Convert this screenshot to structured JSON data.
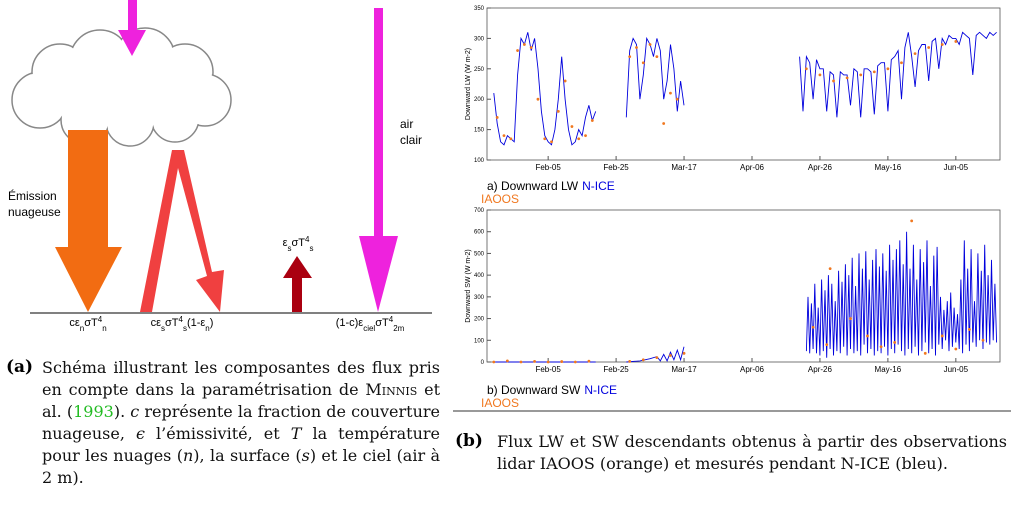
{
  "diagram": {
    "emission": [
      "Émission",
      "nuageuse"
    ],
    "clear_air": [
      "air",
      "clair"
    ],
    "formulas": [
      [
        {
          "t": "cε",
          "pos": "base"
        },
        {
          "t": "n",
          "pos": "sub"
        },
        {
          "t": "σT",
          "pos": "base"
        },
        {
          "t": "4",
          "pos": "super"
        },
        {
          "t": "n",
          "pos": "sub"
        }
      ],
      [
        {
          "t": "cε",
          "pos": "base"
        },
        {
          "t": "s",
          "pos": "sub"
        },
        {
          "t": "σT",
          "pos": "base"
        },
        {
          "t": "4",
          "pos": "super"
        },
        {
          "t": "s",
          "pos": "sub"
        },
        {
          "t": "(1-ε",
          "pos": "base"
        },
        {
          "t": "n",
          "pos": "sub"
        },
        {
          "t": ")",
          "pos": "base"
        }
      ],
      [
        {
          "t": "ε",
          "pos": "base"
        },
        {
          "t": "s",
          "pos": "sub"
        },
        {
          "t": "σT",
          "pos": "base"
        },
        {
          "t": "4",
          "pos": "super"
        },
        {
          "t": "s",
          "pos": "sub"
        }
      ],
      [
        {
          "t": "(1-c)ε",
          "pos": "base"
        },
        {
          "t": "ciel",
          "pos": "sub"
        },
        {
          "t": "σT",
          "pos": "base"
        },
        {
          "t": "4",
          "pos": "super"
        },
        {
          "t": "2m",
          "pos": "sub"
        }
      ]
    ]
  },
  "chart_data": [
    {
      "type": "line",
      "title": "a) Downward LW",
      "ylabel": "Downward LW (W m-2)",
      "xlim": [
        18,
        169
      ],
      "ylim": [
        100,
        350
      ],
      "xticks": [
        {
          "value": 36,
          "label": "Feb-05"
        },
        {
          "value": 56,
          "label": "Feb-25"
        },
        {
          "value": 76,
          "label": "Mar-17"
        },
        {
          "value": 96,
          "label": "Apr-06"
        },
        {
          "value": 116,
          "label": "Apr-26"
        },
        {
          "value": 136,
          "label": "May-16"
        },
        {
          "value": 156,
          "label": "Jun-05"
        }
      ],
      "yticks": [
        100,
        150,
        200,
        250,
        300,
        350
      ],
      "series": [
        {
          "name": "N-ICE",
          "color": "#0000dd",
          "kind": "line",
          "x": [
            20,
            21,
            22,
            23,
            24,
            25,
            26,
            27,
            28,
            29,
            30,
            31,
            32,
            33,
            34,
            35,
            36,
            37,
            38,
            39,
            40,
            41,
            42,
            43,
            44,
            45,
            46,
            47,
            48,
            49,
            50,
            55,
            59,
            60,
            61,
            62,
            63,
            64,
            65,
            66,
            67,
            68,
            69,
            70,
            71,
            72,
            73,
            74,
            75,
            76,
            93,
            110,
            111,
            112,
            113,
            114,
            115,
            116,
            117,
            118,
            119,
            120,
            121,
            122,
            123,
            124,
            125,
            126,
            127,
            128,
            129,
            130,
            131,
            132,
            133,
            134,
            135,
            136,
            137,
            138,
            139,
            140,
            141,
            142,
            143,
            144,
            145,
            146,
            147,
            148,
            149,
            150,
            151,
            152,
            153,
            154,
            155,
            156,
            157,
            158,
            159,
            160,
            161,
            162,
            163,
            164,
            165,
            166,
            167,
            168
          ],
          "values": [
            210,
            160,
            130,
            125,
            140,
            135,
            130,
            240,
            300,
            290,
            310,
            280,
            300,
            250,
            180,
            140,
            130,
            125,
            150,
            200,
            270,
            200,
            150,
            125,
            130,
            150,
            140,
            170,
            190,
            165,
            180,
            null,
            170,
            280,
            300,
            290,
            200,
            240,
            300,
            290,
            270,
            300,
            280,
            200,
            230,
            290,
            250,
            180,
            230,
            190,
            null,
            270,
            180,
            270,
            260,
            200,
            265,
            250,
            250,
            180,
            245,
            240,
            170,
            245,
            240,
            240,
            190,
            250,
            245,
            170,
            250,
            250,
            245,
            175,
            255,
            260,
            260,
            180,
            265,
            270,
            280,
            200,
            285,
            310,
            270,
            220,
            280,
            290,
            290,
            230,
            295,
            300,
            250,
            300,
            290,
            305,
            300,
            300,
            290,
            310,
            305,
            300,
            240,
            305,
            310,
            305,
            300,
            310,
            305,
            310
          ]
        },
        {
          "name": "IAOOS",
          "color": "#f07820",
          "kind": "scatter",
          "x": [
            21,
            23,
            25,
            27,
            29,
            31,
            33,
            35,
            37,
            39,
            41,
            43,
            45,
            47,
            49,
            60,
            62,
            64,
            66,
            68,
            70,
            72,
            74,
            112,
            116,
            120,
            124,
            128,
            132,
            136,
            140,
            144,
            148,
            152,
            156
          ],
          "values": [
            170,
            140,
            135,
            280,
            290,
            285,
            200,
            135,
            130,
            180,
            230,
            155,
            135,
            140,
            165,
            270,
            285,
            260,
            290,
            270,
            160,
            210,
            200,
            250,
            240,
            230,
            235,
            240,
            245,
            250,
            260,
            275,
            285,
            290,
            295
          ]
        }
      ]
    },
    {
      "type": "line",
      "title": "b) Downward SW",
      "ylabel": "Downward SW (W m-2)",
      "xlim": [
        18,
        169
      ],
      "ylim": [
        0,
        700
      ],
      "xticks": [
        {
          "value": 36,
          "label": "Feb-05"
        },
        {
          "value": 56,
          "label": "Feb-25"
        },
        {
          "value": 76,
          "label": "Mar-17"
        },
        {
          "value": 96,
          "label": "Apr-06"
        },
        {
          "value": 116,
          "label": "Apr-26"
        },
        {
          "value": 136,
          "label": "May-16"
        },
        {
          "value": 156,
          "label": "Jun-05"
        }
      ],
      "yticks": [
        0,
        100,
        200,
        300,
        400,
        500,
        600,
        700
      ],
      "series": [
        {
          "name": "N-ICE",
          "color": "#0000dd",
          "kind": "line",
          "x": [
            20,
            30,
            40,
            50,
            55,
            59,
            63,
            66,
            68,
            69,
            70,
            71,
            72,
            73,
            74,
            75,
            76,
            93,
            112,
            112.5,
            113,
            113.5,
            114,
            114.5,
            115,
            115.5,
            116,
            116.5,
            117,
            117.5,
            118,
            118.5,
            119,
            119.5,
            120,
            120.5,
            121,
            121.5,
            122,
            122.5,
            123,
            123.5,
            124,
            124.5,
            125,
            125.5,
            126,
            126.5,
            127,
            127.5,
            128,
            128.5,
            129,
            129.5,
            130,
            130.5,
            131,
            131.5,
            132,
            132.5,
            133,
            133.5,
            134,
            134.5,
            135,
            135.5,
            136,
            136.5,
            137,
            137.5,
            138,
            138.5,
            139,
            139.5,
            140,
            140.5,
            141,
            141.5,
            142,
            142.5,
            143,
            143.5,
            144,
            144.5,
            145,
            145.5,
            146,
            146.5,
            147,
            147.5,
            148,
            148.5,
            149,
            149.5,
            150,
            150.5,
            151,
            151.5,
            152,
            152.5,
            153,
            153.5,
            154,
            154.5,
            155,
            155.5,
            156,
            156.5,
            157,
            157.5,
            158,
            158.5,
            159,
            159.5,
            160,
            160.5,
            161,
            161.5,
            162,
            162.5,
            163,
            163.5,
            164,
            164.5,
            165,
            165.5,
            166,
            166.5,
            167,
            167.5,
            168
          ],
          "values": [
            0,
            0,
            0,
            0,
            null,
            0,
            5,
            15,
            25,
            5,
            35,
            5,
            45,
            10,
            55,
            10,
            70,
            null,
            50,
            300,
            40,
            270,
            60,
            360,
            40,
            250,
            30,
            380,
            50,
            330,
            20,
            400,
            60,
            360,
            30,
            280,
            50,
            420,
            40,
            370,
            70,
            450,
            30,
            400,
            60,
            480,
            40,
            350,
            50,
            500,
            30,
            430,
            80,
            510,
            40,
            380,
            60,
            470,
            30,
            520,
            50,
            440,
            40,
            500,
            70,
            420,
            30,
            540,
            60,
            470,
            40,
            520,
            80,
            560,
            50,
            450,
            30,
            600,
            60,
            430,
            40,
            540,
            70,
            380,
            30,
            520,
            50,
            460,
            90,
            560,
            40,
            350,
            60,
            490,
            30,
            530,
            80,
            300,
            60,
            240,
            100,
            280,
            50,
            320,
            70,
            250,
            90,
            220,
            60,
            380,
            40,
            560,
            80,
            430,
            50,
            520,
            90,
            280,
            70,
            500,
            100,
            420,
            60,
            540,
            90,
            400,
            80,
            470,
            100,
            360,
            90
          ]
        },
        {
          "name": "IAOOS",
          "color": "#f07820",
          "kind": "scatter",
          "x": [
            20,
            24,
            28,
            32,
            36,
            40,
            44,
            48,
            60,
            64,
            68,
            72,
            76,
            114,
            118,
            119,
            125,
            130,
            134,
            138,
            143,
            147,
            152,
            156,
            160,
            164
          ],
          "values": [
            0,
            5,
            0,
            3,
            0,
            2,
            0,
            4,
            3,
            10,
            20,
            30,
            40,
            160,
            80,
            430,
            200,
            120,
            70,
            90,
            650,
            40,
            120,
            60,
            150,
            100
          ]
        }
      ]
    }
  ],
  "captions": {
    "a": {
      "tag": "(a)",
      "parts": [
        {
          "text": "Schéma illustrant les composantes des flux pris en compte dans la paramétrisation de ",
          "style": "plain"
        },
        {
          "text": "Minnis",
          "style": "smallcaps"
        },
        {
          "text": " et al. (",
          "style": "plain"
        },
        {
          "text": "1993",
          "style": "link"
        },
        {
          "text": "). ",
          "style": "plain"
        },
        {
          "text": "c",
          "style": "italic"
        },
        {
          "text": " représente la fraction de couverture nuageuse, ",
          "style": "plain"
        },
        {
          "text": "ϵ",
          "style": "italic"
        },
        {
          "text": " l’émissivité, et ",
          "style": "plain"
        },
        {
          "text": "T",
          "style": "italic"
        },
        {
          "text": " la température pour les nuages (",
          "style": "plain"
        },
        {
          "text": "n",
          "style": "italic"
        },
        {
          "text": "), la surface (",
          "style": "plain"
        },
        {
          "text": "s",
          "style": "italic"
        },
        {
          "text": ") et le ciel (air à 2 m).",
          "style": "plain"
        }
      ]
    },
    "b": {
      "tag": "(b)",
      "text": "Flux LW et SW descendants obtenus à partir des observations lidar IAOOS (orange) et mesurés pendant N-ICE (bleu)."
    }
  }
}
